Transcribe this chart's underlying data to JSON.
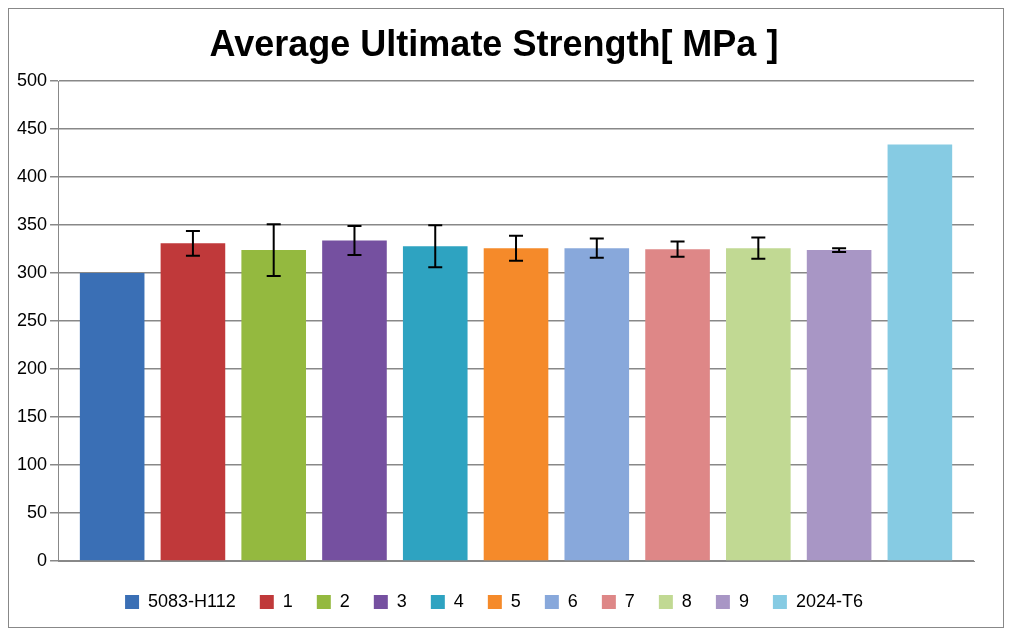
{
  "chart_data": {
    "type": "bar",
    "title": "Average Ultimate Strength[ MPa ]",
    "categories": [
      null
    ],
    "series": [
      {
        "name": "5083-H112",
        "color": "#3a6fb5",
        "values": [
          300
        ]
      },
      {
        "name": "1",
        "color": "#c0393a",
        "values": [
          331
        ],
        "errors": [
          13
        ]
      },
      {
        "name": "2",
        "color": "#94b93f",
        "values": [
          324
        ],
        "errors": [
          27
        ]
      },
      {
        "name": "3",
        "color": "#7550a0",
        "values": [
          334
        ],
        "errors": [
          15
        ]
      },
      {
        "name": "4",
        "color": "#2ea3c1",
        "values": [
          328
        ],
        "errors": [
          22
        ]
      },
      {
        "name": "5",
        "color": "#f58a2a",
        "values": [
          326
        ],
        "errors": [
          13
        ]
      },
      {
        "name": "6",
        "color": "#88a8db",
        "values": [
          326
        ],
        "errors": [
          10
        ]
      },
      {
        "name": "7",
        "color": "#de8787",
        "values": [
          325
        ],
        "errors": [
          8
        ]
      },
      {
        "name": "8",
        "color": "#c1d993",
        "values": [
          326
        ],
        "errors": [
          11
        ]
      },
      {
        "name": "9",
        "color": "#a896c5",
        "values": [
          324
        ],
        "errors": [
          2
        ]
      },
      {
        "name": "2024-T6",
        "color": "#86cbe3",
        "values": [
          434
        ]
      }
    ],
    "ylim": [
      0,
      500
    ],
    "yticks": [
      0,
      50,
      100,
      150,
      200,
      250,
      300,
      350,
      400,
      450,
      500
    ],
    "grid": "y",
    "legend": "bottom"
  }
}
